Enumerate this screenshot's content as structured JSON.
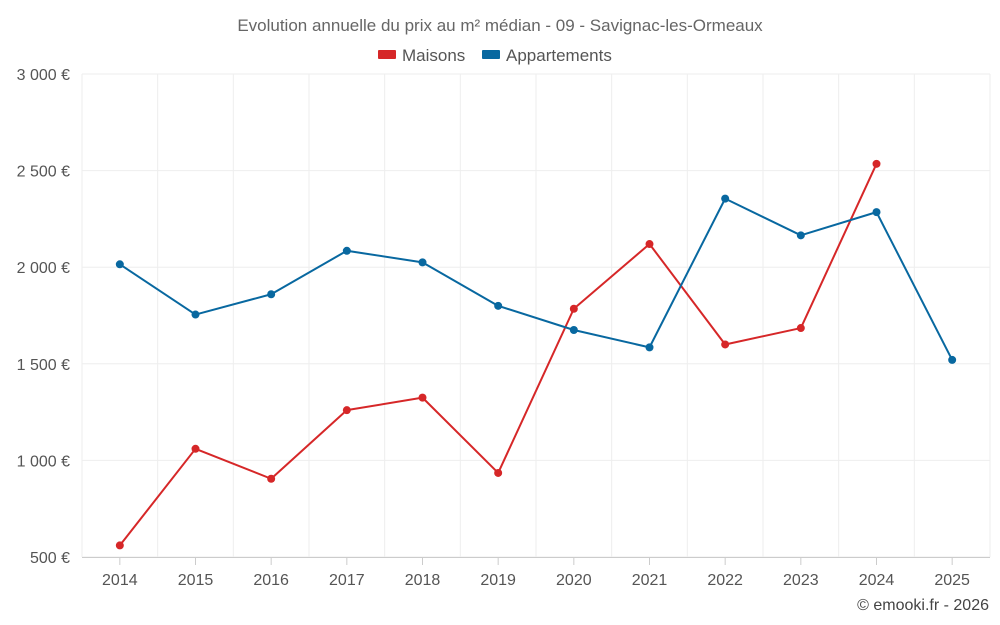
{
  "chart_data": {
    "type": "line",
    "title": "Evolution annuelle du prix au m² médian - 09 - Savignac-les-Ormeaux",
    "categories": [
      "2014",
      "2015",
      "2016",
      "2017",
      "2018",
      "2019",
      "2020",
      "2021",
      "2022",
      "2023",
      "2024",
      "2025"
    ],
    "series": [
      {
        "name": "Maisons",
        "color": "#d62728",
        "values": [
          560,
          1060,
          905,
          1260,
          1325,
          935,
          1785,
          2120,
          1600,
          1685,
          2535,
          null
        ]
      },
      {
        "name": "Appartements",
        "color": "#0868a0",
        "values": [
          2015,
          1755,
          1860,
          2085,
          2025,
          1800,
          1675,
          1585,
          2355,
          2165,
          2285,
          1520
        ]
      }
    ],
    "ylim": [
      500,
      3000
    ],
    "yticks": [
      {
        "value": 500,
        "label": "500 €"
      },
      {
        "value": 1000,
        "label": "1 000 €"
      },
      {
        "value": 1500,
        "label": "1 500 €"
      },
      {
        "value": 2000,
        "label": "2 000 €"
      },
      {
        "value": 2500,
        "label": "2 500 €"
      },
      {
        "value": 3000,
        "label": "3 000 €"
      }
    ],
    "xlabel": "",
    "ylabel": "",
    "grid": true,
    "legend_position": "top-center"
  },
  "credit": "© emooki.fr - 2026"
}
